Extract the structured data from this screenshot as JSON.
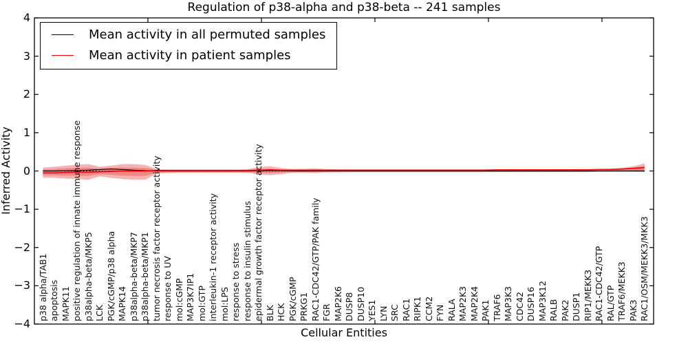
{
  "chart_data": {
    "type": "line",
    "title": "Regulation of p38-alpha and p38-beta -- 241 samples",
    "xlabel": "Cellular Entities",
    "ylabel": "Inferred Activity",
    "ylim": [
      -4,
      4
    ],
    "y_ticks": [
      4,
      3,
      2,
      1,
      0,
      -1,
      -2,
      -3,
      -4
    ],
    "y_tick_labels": [
      "4",
      "3",
      "2",
      "1",
      "0",
      "−1",
      "−2",
      "−3",
      "−4"
    ],
    "x_axis": {
      "lim": [
        0,
        54.55
      ],
      "entity_offset": 0.75,
      "major_ticks": [
        10,
        20,
        30,
        40,
        50
      ]
    },
    "grid": false,
    "legend_position": "upper left",
    "legend": [
      {
        "label": "Mean activity in all permuted samples",
        "color": "#000000"
      },
      {
        "label": "Mean activity in patient samples",
        "color": "#ff0000"
      }
    ],
    "zero_line": {
      "style": "dotted",
      "color": "#000000",
      "value": 0
    },
    "entities": [
      "p38 alpha/TAB1",
      "apoptosis",
      "MAPK11",
      "positive regulation of innate immune response",
      "p38alpha-beta/MKP5",
      "LCK",
      "PGK/cGMP/p38 alpha",
      "MAPK14",
      "p38alpha-beta/MKP7",
      "p38alpha-beta/MKP1",
      "tumor necrosis factor receptor activity",
      "response to UV",
      "mol:cGMP",
      "MAP3K7IP1",
      "mol:GTP",
      "interleukin-1 receptor activity",
      "mol:LPS",
      "response to stress",
      "response to insulin stimulus",
      "epidermal growth factor receptor activity",
      "BLK",
      "HCK",
      "PGK/cGMP",
      "PRKG1",
      "RAC1-CDC42/GTP/PAK family",
      "FGR",
      "MAP2K6",
      "DUSP8",
      "DUSP10",
      "YES1",
      "LYN",
      "SRC",
      "RAC1",
      "RIPK1",
      "CCM2",
      "FYN",
      "RALA",
      "MAP2K3",
      "MAP2K4",
      "PAK1",
      "TRAF6",
      "MAP3K3",
      "CDC42",
      "DUSP16",
      "MAP3K12",
      "RALB",
      "PAK2",
      "DUSP1",
      "RIP1/MEKK3",
      "RAC1-CDC42/GTP",
      "RAL/GTP",
      "TRAF6/MEKK3",
      "PAK3",
      "RAC1/OSM/MEKK3/MKK3"
    ],
    "series": [
      {
        "name": "Mean activity in all permuted samples",
        "color": "#000000",
        "values": [
          0,
          0,
          0.005,
          0.01,
          0.02,
          0.04,
          0.05,
          0.04,
          0.02,
          0.01,
          0,
          0,
          0,
          0,
          0,
          0,
          0,
          0,
          0,
          0.005,
          0.01,
          0.005,
          0,
          0,
          0,
          0,
          0,
          0,
          0,
          0,
          0,
          0,
          0,
          0,
          0,
          0,
          0,
          0,
          0,
          0,
          0,
          0,
          0,
          0,
          0,
          0,
          0,
          0,
          0,
          0,
          0,
          0,
          0,
          0
        ]
      },
      {
        "name": "Mean activity in patient samples",
        "color": "#ff0000",
        "values": [
          -0.05,
          -0.05,
          -0.04,
          -0.03,
          -0.03,
          -0.02,
          -0.01,
          0,
          0,
          0,
          0.01,
          0.01,
          0.01,
          0.01,
          0.01,
          0.01,
          0.01,
          0.01,
          0.01,
          0.02,
          0.03,
          0.02,
          0.02,
          0.02,
          0.02,
          0.02,
          0.02,
          0.02,
          0.02,
          0.02,
          0.02,
          0.02,
          0.02,
          0.02,
          0.02,
          0.02,
          0.02,
          0.02,
          0.02,
          0.02,
          0.03,
          0.03,
          0.03,
          0.03,
          0.03,
          0.03,
          0.03,
          0.03,
          0.03,
          0.04,
          0.04,
          0.05,
          0.07,
          0.09
        ]
      }
    ],
    "bands": [
      {
        "name": "outer",
        "color": "#f08080",
        "opacity": 0.6,
        "top": [
          0.09,
          0.11,
          0.14,
          0.16,
          0.18,
          0.11,
          0.14,
          0.18,
          0.18,
          0.16,
          0.05,
          0.04,
          0.04,
          0.04,
          0.04,
          0.04,
          0.04,
          0.04,
          0.05,
          0.1,
          0.12,
          0.08,
          0.05,
          0.06,
          0.07,
          0.05,
          0.04,
          0.04,
          0.04,
          0.04,
          0.04,
          0.04,
          0.04,
          0.04,
          0.04,
          0.04,
          0.04,
          0.04,
          0.04,
          0.04,
          0.04,
          0.04,
          0.04,
          0.04,
          0.04,
          0.04,
          0.04,
          0.05,
          0.05,
          0.05,
          0.06,
          0.08,
          0.12,
          0.2
        ],
        "bottom": [
          -0.18,
          -0.18,
          -0.2,
          -0.21,
          -0.23,
          -0.14,
          -0.18,
          -0.21,
          -0.23,
          -0.23,
          -0.07,
          -0.06,
          -0.05,
          -0.05,
          -0.05,
          -0.05,
          -0.05,
          -0.05,
          -0.05,
          -0.09,
          -0.11,
          -0.08,
          -0.05,
          -0.05,
          -0.06,
          -0.04,
          -0.04,
          -0.03,
          -0.03,
          -0.03,
          -0.03,
          -0.03,
          -0.03,
          -0.03,
          -0.03,
          -0.03,
          -0.03,
          -0.03,
          -0.03,
          -0.03,
          -0.03,
          -0.03,
          -0.03,
          -0.03,
          -0.03,
          -0.03,
          -0.03,
          -0.03,
          -0.03,
          -0.02,
          -0.02,
          -0.02,
          -0.02,
          -0.03
        ]
      },
      {
        "name": "inner",
        "color": "#e85555",
        "opacity": 0.45,
        "top": [
          0.04,
          0.05,
          0.07,
          0.08,
          0.09,
          0.06,
          0.08,
          0.09,
          0.09,
          0.08,
          0.03,
          0.02,
          0.02,
          0.02,
          0.02,
          0.02,
          0.02,
          0.02,
          0.02,
          0.05,
          0.06,
          0.04,
          0.03,
          0.03,
          0.04,
          0.03,
          0.02,
          0.02,
          0.02,
          0.02,
          0.02,
          0.02,
          0.02,
          0.02,
          0.02,
          0.02,
          0.02,
          0.02,
          0.02,
          0.02,
          0.02,
          0.02,
          0.02,
          0.02,
          0.02,
          0.02,
          0.02,
          0.03,
          0.03,
          0.03,
          0.04,
          0.05,
          0.08,
          0.13
        ],
        "bottom": [
          -0.11,
          -0.11,
          -0.12,
          -0.12,
          -0.13,
          -0.08,
          -0.1,
          -0.12,
          -0.13,
          -0.13,
          -0.04,
          -0.03,
          -0.03,
          -0.03,
          -0.03,
          -0.03,
          -0.03,
          -0.03,
          -0.03,
          -0.05,
          -0.06,
          -0.04,
          -0.03,
          -0.03,
          -0.03,
          -0.02,
          -0.02,
          -0.02,
          -0.02,
          -0.02,
          -0.02,
          -0.02,
          -0.02,
          -0.02,
          -0.02,
          -0.02,
          -0.02,
          -0.02,
          -0.02,
          -0.02,
          -0.02,
          -0.02,
          -0.02,
          -0.02,
          -0.02,
          -0.02,
          -0.02,
          -0.02,
          -0.02,
          -0.01,
          -0.01,
          -0.01,
          -0.01,
          -0.01
        ]
      }
    ]
  }
}
